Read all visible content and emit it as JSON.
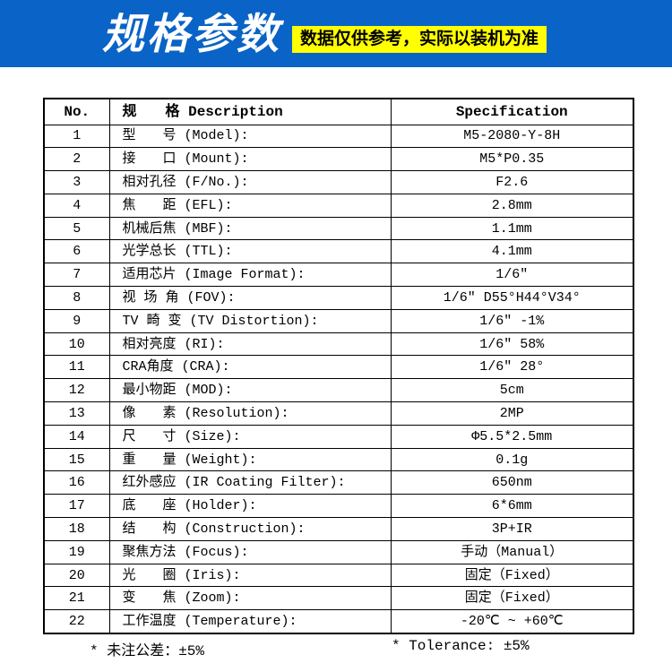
{
  "banner": {
    "title": "规格参数",
    "badge": "数据仅供参考，实际以装机为准",
    "bg_color": "#0a63c6",
    "badge_bg": "#ffff00",
    "title_color": "#ffffff"
  },
  "table": {
    "headers": [
      "No.",
      "规　　格  Description",
      "Specification"
    ],
    "rows": [
      {
        "no": "1",
        "desc": "型　　号  (Model):",
        "spec": "M5-2080-Y-8H"
      },
      {
        "no": "2",
        "desc": "接　　口  (Mount):",
        "spec": "M5*P0.35"
      },
      {
        "no": "3",
        "desc": "相对孔径  (F/No.):",
        "spec": "F2.6"
      },
      {
        "no": "4",
        "desc": "焦　　距  (EFL):",
        "spec": "2.8mm"
      },
      {
        "no": "5",
        "desc": "机械后焦  (MBF):",
        "spec": "1.1mm"
      },
      {
        "no": "6",
        "desc": "光学总长  (TTL):",
        "spec": "4.1mm"
      },
      {
        "no": "7",
        "desc": "适用芯片  (Image Format):",
        "spec": "1/6″"
      },
      {
        "no": "8",
        "desc": "视 场 角  (FOV):",
        "spec": "1/6″ D55°H44°V34°"
      },
      {
        "no": "9",
        "desc": "TV 畸 变  (TV Distortion):",
        "spec": "1/6″ -1%"
      },
      {
        "no": "10",
        "desc": "相对亮度  (RI):",
        "spec": "1/6″ 58%"
      },
      {
        "no": "11",
        "desc": "CRA角度  (CRA):",
        "spec": "1/6″ 28°"
      },
      {
        "no": "12",
        "desc": "最小物距  (MOD):",
        "spec": "5cm"
      },
      {
        "no": "13",
        "desc": "像　　素  (Resolution):",
        "spec": "2MP"
      },
      {
        "no": "14",
        "desc": "尺　　寸  (Size):",
        "spec": "Φ5.5*2.5mm"
      },
      {
        "no": "15",
        "desc": "重　　量  (Weight):",
        "spec": "0.1g"
      },
      {
        "no": "16",
        "desc": "红外感应  (IR Coating Filter):",
        "spec": "650nm"
      },
      {
        "no": "17",
        "desc": "底　　座  (Holder):",
        "spec": "6*6mm"
      },
      {
        "no": "18",
        "desc": "结　　构  (Construction):",
        "spec": "3P+IR"
      },
      {
        "no": "19",
        "desc": "聚焦方法  (Focus):",
        "spec": "手动（Manual）"
      },
      {
        "no": "20",
        "desc": "光　　圈  (Iris):",
        "spec": "固定（Fixed）"
      },
      {
        "no": "21",
        "desc": "变　　焦  (Zoom):",
        "spec": "固定（Fixed）"
      },
      {
        "no": "22",
        "desc": "工作温度  (Temperature):",
        "spec": "-20℃ ~ +60℃"
      }
    ]
  },
  "footnotes": {
    "cn": "* 未注公差：±5%",
    "en": "* Tolerance: ±5%"
  }
}
